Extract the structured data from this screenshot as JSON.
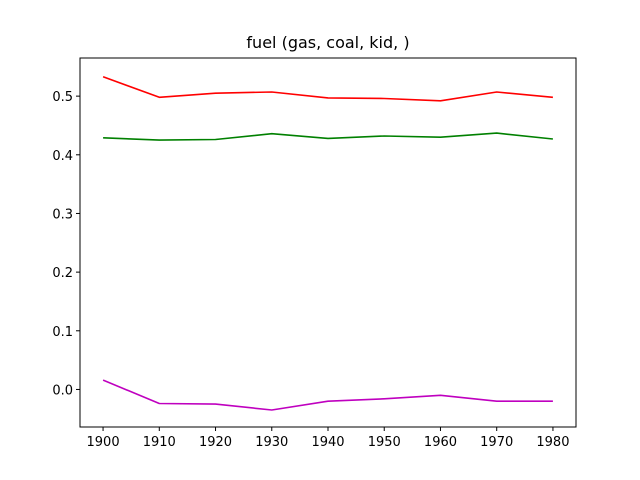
{
  "chart_data": {
    "type": "line",
    "title": "fuel (gas, coal, kid, )",
    "xlabel": "",
    "ylabel": "",
    "x": [
      1900,
      1910,
      1920,
      1930,
      1940,
      1950,
      1960,
      1970,
      1980
    ],
    "xlim": [
      1895.9,
      1984.1
    ],
    "ylim": [
      -0.064,
      0.565
    ],
    "xticks": [
      1900,
      1910,
      1920,
      1930,
      1940,
      1950,
      1960,
      1970,
      1980
    ],
    "yticks": [
      0.0,
      0.1,
      0.2,
      0.3,
      0.4,
      0.5
    ],
    "ytick_labels": [
      "0.0",
      "0.1",
      "0.2",
      "0.3",
      "0.4",
      "0.5"
    ],
    "grid": false,
    "series": [
      {
        "color": "#ff0000",
        "values": [
          0.533,
          0.498,
          0.505,
          0.507,
          0.497,
          0.496,
          0.492,
          0.507,
          0.498
        ]
      },
      {
        "color": "#008000",
        "values": [
          0.429,
          0.425,
          0.426,
          0.436,
          0.428,
          0.432,
          0.43,
          0.437,
          0.427
        ]
      },
      {
        "color": "#bf00bf",
        "values": [
          0.016,
          -0.024,
          -0.025,
          -0.035,
          -0.02,
          -0.016,
          -0.01,
          -0.02,
          -0.02
        ]
      }
    ]
  }
}
